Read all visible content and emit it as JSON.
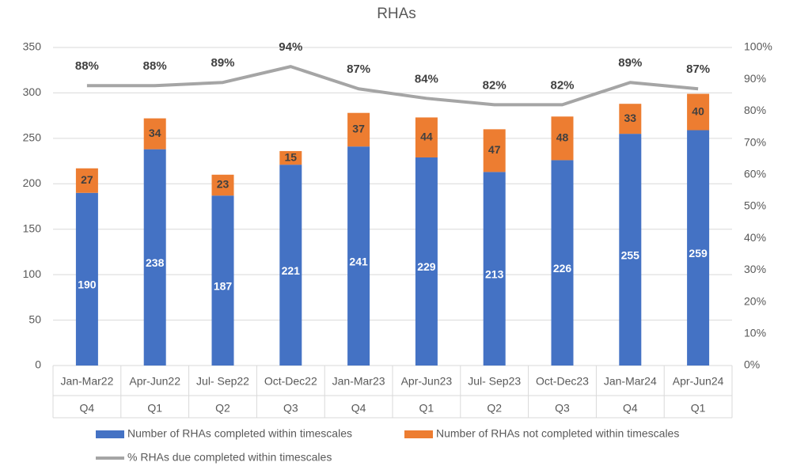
{
  "chart_data": {
    "type": "bar",
    "stacked": true,
    "title": "RHAs",
    "categories": [
      "Jan-Mar22",
      "Apr-Jun22",
      "Jul- Sep22",
      "Oct-Dec22",
      "Jan-Mar23",
      "Apr-Jun23",
      "Jul- Sep23",
      "Oct-Dec23",
      "Jan-Mar24",
      "Apr-Jun24"
    ],
    "category_groups": [
      "Q4",
      "Q1",
      "Q2",
      "Q3",
      "Q4",
      "Q1",
      "Q2",
      "Q3",
      "Q4",
      "Q1"
    ],
    "series": [
      {
        "name": "Number of RHAs completed within timescales",
        "color": "#4472c4",
        "type": "bar",
        "values": [
          190,
          238,
          187,
          221,
          241,
          229,
          213,
          226,
          255,
          259
        ]
      },
      {
        "name": "Number of RHAs not completed within timescales",
        "color": "#ed7d31",
        "type": "bar",
        "values": [
          27,
          34,
          23,
          15,
          37,
          44,
          47,
          48,
          33,
          40
        ]
      },
      {
        "name": "% RHAs due completed within timescales",
        "color": "#a5a5a5",
        "type": "line",
        "axis": "y2",
        "values": [
          88,
          88,
          89,
          94,
          87,
          84,
          82,
          82,
          89,
          87
        ],
        "value_labels": [
          "88%",
          "88%",
          "89%",
          "94%",
          "87%",
          "84%",
          "82%",
          "82%",
          "89%",
          "87%"
        ]
      }
    ],
    "ylim": [
      0,
      350
    ],
    "yticks": [
      0,
      50,
      100,
      150,
      200,
      250,
      300,
      350
    ],
    "y2lim": [
      0,
      100
    ],
    "y2ticks": [
      {
        "value": 0,
        "label": "0%"
      },
      {
        "value": 10,
        "label": "10%"
      },
      {
        "value": 20,
        "label": "20%"
      },
      {
        "value": 30,
        "label": "30%"
      },
      {
        "value": 40,
        "label": "40%"
      },
      {
        "value": 50,
        "label": "50%"
      },
      {
        "value": 60,
        "label": "60%"
      },
      {
        "value": 70,
        "label": "70%"
      },
      {
        "value": 80,
        "label": "80%"
      },
      {
        "value": 90,
        "label": "90%"
      },
      {
        "value": 100,
        "label": "100%"
      }
    ],
    "grid": true
  }
}
